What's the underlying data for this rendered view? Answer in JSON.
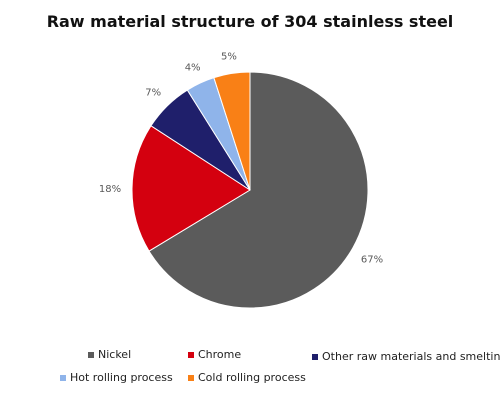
{
  "chart_data": {
    "type": "pie",
    "title": "Raw material structure of 304 stainless steel",
    "slices": [
      {
        "label": "Nickel",
        "value": 67,
        "display": "67%",
        "color": "#5b5b5b"
      },
      {
        "label": "Chrome",
        "value": 18,
        "display": "18%",
        "color": "#d4000f"
      },
      {
        "label": "Other raw materials and smelting",
        "value": 7,
        "display": "7%",
        "color": "#1f1f6b"
      },
      {
        "label": "Hot rolling process",
        "value": 4,
        "display": "4%",
        "color": "#8fb4ea"
      },
      {
        "label": "Cold rolling process",
        "value": 5,
        "display": "5%",
        "color": "#f98016"
      }
    ],
    "start": "12 o'clock",
    "direction": "clockwise",
    "legend_position": "bottom"
  }
}
